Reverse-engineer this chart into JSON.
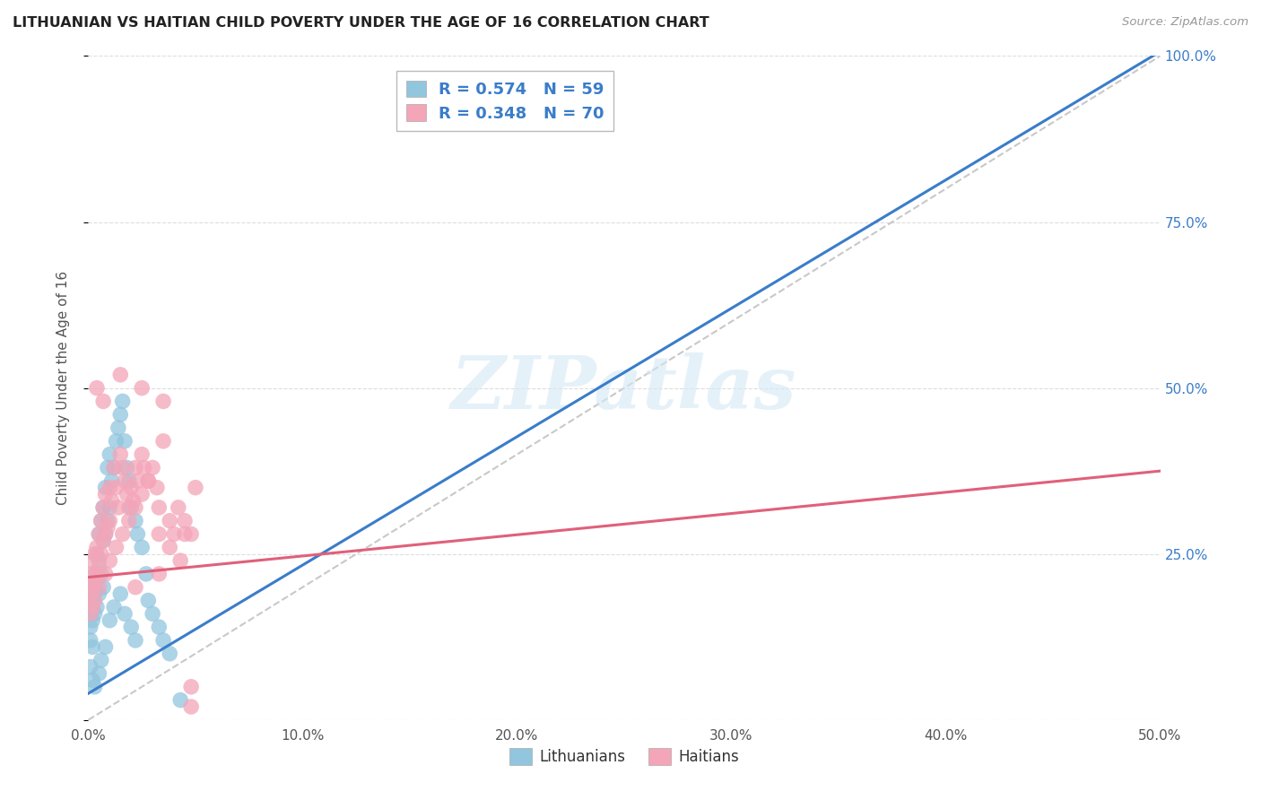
{
  "title": "LITHUANIAN VS HAITIAN CHILD POVERTY UNDER THE AGE OF 16 CORRELATION CHART",
  "source": "Source: ZipAtlas.com",
  "ylabel": "Child Poverty Under the Age of 16",
  "xlim": [
    0.0,
    0.5
  ],
  "ylim": [
    0.0,
    1.0
  ],
  "xtick_vals": [
    0.0,
    0.1,
    0.2,
    0.3,
    0.4,
    0.5
  ],
  "xtick_labels": [
    "0.0%",
    "10.0%",
    "20.0%",
    "30.0%",
    "40.0%",
    "50.0%"
  ],
  "ytick_vals": [
    0.0,
    0.25,
    0.5,
    0.75,
    1.0
  ],
  "ytick_labels": [
    "",
    "25.0%",
    "50.0%",
    "75.0%",
    "100.0%"
  ],
  "lithuanian_color": "#92c5de",
  "haitian_color": "#f4a5b8",
  "trend_blue": "#3a7dc9",
  "trend_pink": "#e0607a",
  "diag_color": "#bbbbbb",
  "R_lithuanian": 0.574,
  "N_lithuanian": 59,
  "R_haitian": 0.348,
  "N_haitian": 70,
  "background_color": "#ffffff",
  "grid_color": "#dddddd",
  "watermark": "ZIPatlas",
  "blue_trend_x0": 0.0,
  "blue_trend_y0": 0.04,
  "blue_trend_x1": 0.3,
  "blue_trend_y1": 0.62,
  "pink_trend_x0": 0.0,
  "pink_trend_y0": 0.215,
  "pink_trend_x1": 0.5,
  "pink_trend_y1": 0.375,
  "legend_R_color": "#3a7dc9",
  "legend_N_color": "#3a7dc9",
  "lith_scatter_x": [
    0.001,
    0.001,
    0.001,
    0.002,
    0.002,
    0.002,
    0.002,
    0.003,
    0.003,
    0.003,
    0.004,
    0.004,
    0.004,
    0.005,
    0.005,
    0.005,
    0.006,
    0.006,
    0.007,
    0.007,
    0.007,
    0.008,
    0.008,
    0.009,
    0.009,
    0.01,
    0.01,
    0.011,
    0.012,
    0.013,
    0.014,
    0.015,
    0.016,
    0.017,
    0.018,
    0.019,
    0.02,
    0.022,
    0.023,
    0.025,
    0.027,
    0.028,
    0.03,
    0.033,
    0.035,
    0.038,
    0.001,
    0.002,
    0.003,
    0.005,
    0.006,
    0.008,
    0.01,
    0.012,
    0.015,
    0.017,
    0.02,
    0.022,
    0.043
  ],
  "lith_scatter_y": [
    0.17,
    0.14,
    0.12,
    0.2,
    0.18,
    0.15,
    0.11,
    0.22,
    0.19,
    0.16,
    0.25,
    0.21,
    0.17,
    0.28,
    0.24,
    0.19,
    0.3,
    0.22,
    0.32,
    0.27,
    0.2,
    0.35,
    0.28,
    0.38,
    0.3,
    0.4,
    0.32,
    0.36,
    0.38,
    0.42,
    0.44,
    0.46,
    0.48,
    0.42,
    0.38,
    0.36,
    0.32,
    0.3,
    0.28,
    0.26,
    0.22,
    0.18,
    0.16,
    0.14,
    0.12,
    0.1,
    0.08,
    0.06,
    0.05,
    0.07,
    0.09,
    0.11,
    0.15,
    0.17,
    0.19,
    0.16,
    0.14,
    0.12,
    0.03
  ],
  "hait_scatter_x": [
    0.001,
    0.001,
    0.001,
    0.002,
    0.002,
    0.002,
    0.003,
    0.003,
    0.004,
    0.004,
    0.005,
    0.005,
    0.006,
    0.006,
    0.007,
    0.007,
    0.008,
    0.008,
    0.009,
    0.01,
    0.01,
    0.011,
    0.012,
    0.013,
    0.014,
    0.015,
    0.016,
    0.017,
    0.018,
    0.019,
    0.02,
    0.021,
    0.022,
    0.023,
    0.025,
    0.026,
    0.028,
    0.03,
    0.032,
    0.033,
    0.035,
    0.038,
    0.04,
    0.042,
    0.045,
    0.048,
    0.05,
    0.003,
    0.005,
    0.008,
    0.01,
    0.013,
    0.016,
    0.019,
    0.022,
    0.025,
    0.028,
    0.033,
    0.038,
    0.043,
    0.048,
    0.004,
    0.007,
    0.015,
    0.025,
    0.035,
    0.045,
    0.022,
    0.033,
    0.048
  ],
  "hait_scatter_y": [
    0.22,
    0.19,
    0.16,
    0.24,
    0.2,
    0.17,
    0.25,
    0.21,
    0.26,
    0.22,
    0.28,
    0.23,
    0.3,
    0.25,
    0.32,
    0.27,
    0.34,
    0.28,
    0.29,
    0.35,
    0.3,
    0.33,
    0.38,
    0.35,
    0.32,
    0.4,
    0.38,
    0.36,
    0.34,
    0.32,
    0.35,
    0.33,
    0.38,
    0.36,
    0.4,
    0.38,
    0.36,
    0.38,
    0.35,
    0.32,
    0.42,
    0.3,
    0.28,
    0.32,
    0.3,
    0.28,
    0.35,
    0.18,
    0.2,
    0.22,
    0.24,
    0.26,
    0.28,
    0.3,
    0.32,
    0.34,
    0.36,
    0.28,
    0.26,
    0.24,
    0.02,
    0.5,
    0.48,
    0.52,
    0.5,
    0.48,
    0.28,
    0.2,
    0.22,
    0.05
  ]
}
